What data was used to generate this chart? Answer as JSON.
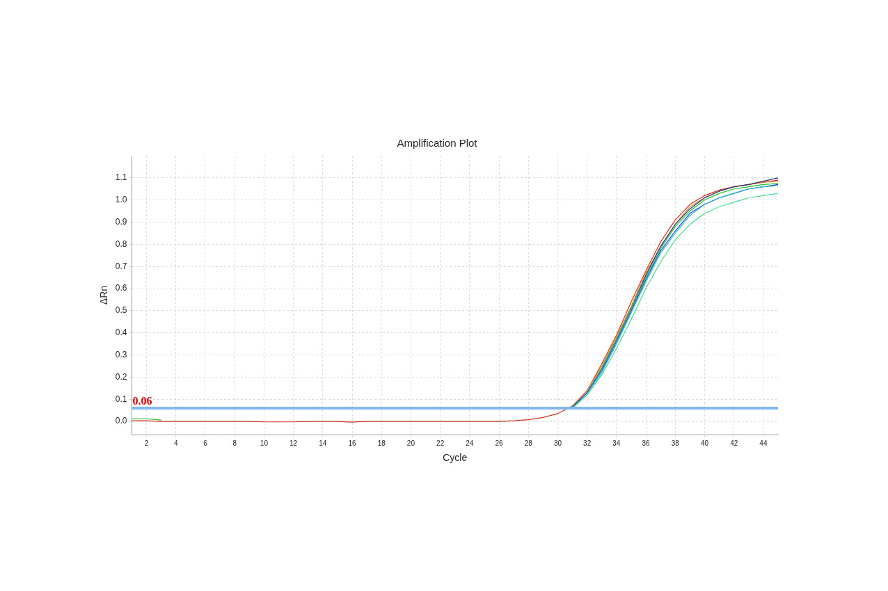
{
  "chart_data": {
    "type": "line",
    "title": "Amplification Plot",
    "xlabel": "Cycle",
    "ylabel": "ΔRn",
    "x": [
      1,
      2,
      3,
      4,
      5,
      6,
      7,
      8,
      9,
      10,
      11,
      12,
      13,
      14,
      15,
      16,
      17,
      18,
      19,
      20,
      21,
      22,
      23,
      24,
      25,
      26,
      27,
      28,
      29,
      30,
      31,
      32,
      33,
      34,
      35,
      36,
      37,
      38,
      39,
      40,
      41,
      42,
      43,
      44,
      45
    ],
    "xlim": [
      1,
      45
    ],
    "xticks": [
      2,
      4,
      6,
      8,
      10,
      12,
      14,
      16,
      18,
      20,
      22,
      24,
      26,
      28,
      30,
      32,
      34,
      36,
      38,
      40,
      42,
      44
    ],
    "ylim": [
      -0.06,
      1.2
    ],
    "yticks": [
      {
        "value": 0,
        "label": "0.0"
      },
      0.1,
      0.2,
      0.3,
      0.4,
      0.5,
      0.6,
      0.7,
      0.8,
      0.9,
      {
        "value": 1,
        "label": "1.0"
      },
      1.1
    ],
    "grid": true,
    "legend": false,
    "marker": "none",
    "line_style": "solid",
    "ref_lines": [
      {
        "axis": "y",
        "value": 0.06,
        "label": "0.06",
        "color": "#80b8f0"
      }
    ],
    "series": [
      {
        "color": "#40e090",
        "values": [
          null,
          null,
          null,
          null,
          null,
          null,
          null,
          null,
          null,
          null,
          null,
          null,
          null,
          null,
          null,
          null,
          null,
          null,
          null,
          null,
          null,
          null,
          null,
          null,
          null,
          null,
          null,
          null,
          null,
          null,
          0.06,
          0.12,
          0.21,
          0.33,
          0.46,
          0.6,
          0.72,
          0.82,
          0.89,
          0.94,
          0.97,
          0.99,
          1.01,
          1.02,
          1.03
        ]
      },
      {
        "color": "#20c0d0",
        "values": [
          null,
          null,
          null,
          null,
          null,
          null,
          null,
          null,
          null,
          null,
          null,
          null,
          null,
          null,
          null,
          null,
          null,
          null,
          null,
          null,
          null,
          null,
          null,
          null,
          null,
          null,
          null,
          null,
          null,
          null,
          0.06,
          0.12,
          0.22,
          0.35,
          0.49,
          0.63,
          0.76,
          0.85,
          0.93,
          0.98,
          1.01,
          1.03,
          1.05,
          1.06,
          1.065
        ]
      },
      {
        "color": "#2040e0",
        "values": [
          null,
          null,
          null,
          null,
          null,
          null,
          null,
          null,
          null,
          null,
          null,
          null,
          null,
          null,
          null,
          null,
          null,
          null,
          null,
          null,
          null,
          null,
          null,
          null,
          null,
          null,
          null,
          null,
          null,
          null,
          0.065,
          0.13,
          0.23,
          0.36,
          0.5,
          0.64,
          0.77,
          0.86,
          0.94,
          0.98,
          1.01,
          1.03,
          1.05,
          1.06,
          1.07
        ]
      },
      {
        "color": "#20c020",
        "values": [
          0.012,
          0.012,
          0.006,
          null,
          null,
          null,
          null,
          null,
          null,
          null,
          null,
          null,
          null,
          null,
          null,
          null,
          null,
          null,
          null,
          null,
          null,
          null,
          null,
          null,
          null,
          null,
          null,
          null,
          null,
          null,
          0.065,
          0.13,
          0.24,
          0.37,
          0.51,
          0.65,
          0.78,
          0.88,
          0.95,
          1,
          1.03,
          1.05,
          1.06,
          1.07,
          1.075
        ]
      },
      {
        "color": "#203080",
        "values": [
          null,
          null,
          null,
          null,
          null,
          null,
          null,
          null,
          null,
          null,
          null,
          null,
          null,
          null,
          null,
          null,
          null,
          null,
          null,
          null,
          null,
          null,
          null,
          null,
          null,
          null,
          null,
          null,
          null,
          null,
          0.065,
          0.13,
          0.24,
          0.37,
          0.51,
          0.66,
          0.79,
          0.89,
          0.96,
          1.01,
          1.04,
          1.06,
          1.07,
          1.085,
          1.1
        ]
      },
      {
        "color": "#f08020",
        "values": [
          null,
          null,
          null,
          null,
          null,
          null,
          null,
          null,
          null,
          null,
          null,
          null,
          null,
          null,
          null,
          null,
          null,
          null,
          null,
          null,
          null,
          null,
          null,
          null,
          null,
          null,
          null,
          null,
          null,
          null,
          0.07,
          0.14,
          0.25,
          0.38,
          0.52,
          0.67,
          0.79,
          0.89,
          0.97,
          1.01,
          1.04,
          1.06,
          1.07,
          1.08,
          1.085
        ]
      },
      {
        "color": "#d03020",
        "values": [
          0.003,
          0.003,
          0,
          0,
          0,
          0,
          0,
          0,
          0,
          -0.002,
          -0.002,
          -0.002,
          0,
          0,
          0,
          -0.003,
          0,
          0,
          0,
          0,
          0,
          0,
          0,
          0,
          0,
          0,
          0.003,
          0.008,
          0.018,
          0.035,
          0.07,
          0.14,
          0.26,
          0.39,
          0.54,
          0.68,
          0.81,
          0.91,
          0.98,
          1.02,
          1.045,
          1.06,
          1.07,
          1.08,
          1.09
        ]
      }
    ]
  }
}
